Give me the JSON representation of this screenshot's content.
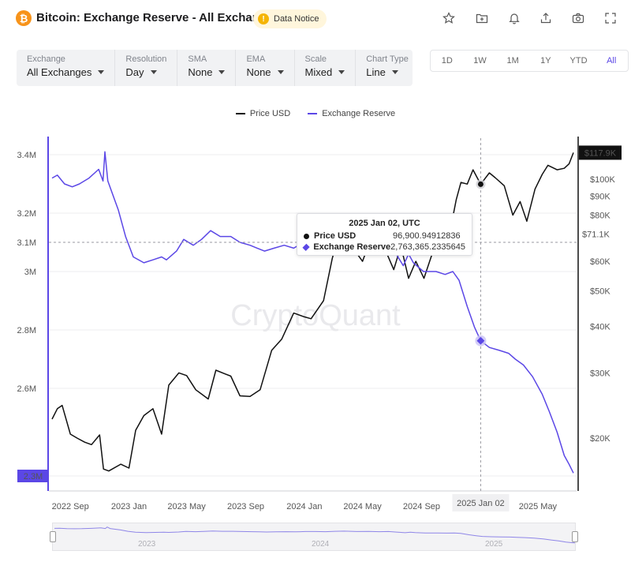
{
  "header": {
    "title": "Bitcoin: Exchange Reserve - All Exchanges",
    "logo_glyph": "₿",
    "notice_label": "Data Notice",
    "notice_glyph": "!",
    "icons": [
      "star-icon",
      "folder-add-icon",
      "bell-icon",
      "share-icon",
      "camera-icon",
      "fullscreen-icon"
    ]
  },
  "controls": [
    {
      "label": "Exchange",
      "value": "All Exchanges"
    },
    {
      "label": "Resolution",
      "value": "Day"
    },
    {
      "label": "SMA",
      "value": "None"
    },
    {
      "label": "EMA",
      "value": "None"
    },
    {
      "label": "Scale",
      "value": "Mixed"
    },
    {
      "label": "Chart Type",
      "value": "Line"
    }
  ],
  "ranges": [
    "1D",
    "1W",
    "1M",
    "1Y",
    "YTD",
    "All"
  ],
  "active_range": "All",
  "colors": {
    "price": "#111111",
    "reserve": "#5b47e6",
    "accent": "#5b47e6"
  },
  "tooltip": {
    "date": "2025 Jan 02, UTC",
    "rows": [
      {
        "name": "Price USD",
        "value": "96,900.94912836"
      },
      {
        "name": "Exchange Reserve",
        "value": "2,763,365.2335645"
      }
    ]
  },
  "navigator": {
    "years": [
      "2023",
      "2024",
      "2025"
    ]
  },
  "chart_data": {
    "type": "line",
    "watermark": "CryptoQuant",
    "grid": true,
    "legend_placement": "top-center",
    "x_ticks": [
      "2022 Sep",
      "2023 Jan",
      "2023 May",
      "2023 Sep",
      "2024 Jan",
      "2024 May",
      "2024 Sep",
      "2025 May"
    ],
    "x_range": [
      "2022-07-25",
      "2025-07-14"
    ],
    "crosshair": {
      "x": "2025-01-02",
      "x_label": "2025 Jan 02",
      "left_label": "3.1M",
      "right_label": "$71.1K"
    },
    "y_left": {
      "label_ticks": [
        "3.4M",
        "3.2M",
        "3M",
        "2.8M",
        "2.6M",
        "2.3M"
      ],
      "range": [
        2.3,
        3.45
      ],
      "unit": "M"
    },
    "y_right": {
      "scale": "log",
      "label_ticks": [
        "$117.9K",
        "$100K",
        "$90K",
        "$80K",
        "$71.1K",
        "$60K",
        "$50K",
        "$40K",
        "$30K",
        "$20K"
      ],
      "range": [
        15,
        125
      ],
      "unit": "K"
    },
    "series": [
      {
        "name": "Price USD",
        "axis": "right",
        "x": [
          "2022-07-25",
          "2022-08-05",
          "2022-08-15",
          "2022-09-01",
          "2022-09-15",
          "2022-10-01",
          "2022-10-15",
          "2022-11-01",
          "2022-11-09",
          "2022-11-20",
          "2022-12-15",
          "2023-01-01",
          "2023-01-15",
          "2023-02-01",
          "2023-02-20",
          "2023-03-10",
          "2023-03-25",
          "2023-04-15",
          "2023-05-01",
          "2023-05-20",
          "2023-06-15",
          "2023-07-01",
          "2023-07-20",
          "2023-08-01",
          "2023-08-20",
          "2023-09-10",
          "2023-10-01",
          "2023-10-25",
          "2023-11-15",
          "2023-12-10",
          "2024-01-01",
          "2024-01-15",
          "2024-02-10",
          "2024-02-28",
          "2024-03-14",
          "2024-04-01",
          "2024-05-01",
          "2024-05-20",
          "2024-06-15",
          "2024-07-05",
          "2024-07-20",
          "2024-08-05",
          "2024-08-20",
          "2024-09-06",
          "2024-09-25",
          "2024-10-15",
          "2024-10-30",
          "2024-11-12",
          "2024-11-22",
          "2024-12-05",
          "2024-12-17",
          "2025-01-02",
          "2025-01-20",
          "2025-02-01",
          "2025-02-20",
          "2025-03-10",
          "2025-03-25",
          "2025-04-08",
          "2025-04-25",
          "2025-05-10",
          "2025-05-22",
          "2025-06-10",
          "2025-06-25",
          "2025-07-05",
          "2025-07-14"
        ],
        "values": [
          22.5,
          24.0,
          24.5,
          20.5,
          20.0,
          19.5,
          19.2,
          20.4,
          16.5,
          16.3,
          17.0,
          16.6,
          21.0,
          23.0,
          24.0,
          20.5,
          27.8,
          30.0,
          29.5,
          27.0,
          25.5,
          30.5,
          29.8,
          29.4,
          26.0,
          25.9,
          27.0,
          34.5,
          37.0,
          43.5,
          42.5,
          42.0,
          47.0,
          61.0,
          72.0,
          68.0,
          60.0,
          70.0,
          65.5,
          57.0,
          66.0,
          54.0,
          60.0,
          54.0,
          64.0,
          67.5,
          72.0,
          88.0,
          98.0,
          97.0,
          106.0,
          96.9,
          104.0,
          101.0,
          96.0,
          80.0,
          87.0,
          77.0,
          94.0,
          103.0,
          109.0,
          106.0,
          107.0,
          110.0,
          117.9
        ]
      },
      {
        "name": "Exchange Reserve",
        "axis": "left",
        "x": [
          "2022-07-25",
          "2022-08-05",
          "2022-08-20",
          "2022-09-05",
          "2022-09-20",
          "2022-10-10",
          "2022-10-30",
          "2022-11-08",
          "2022-11-12",
          "2022-11-18",
          "2022-12-10",
          "2022-12-25",
          "2023-01-10",
          "2023-02-01",
          "2023-02-20",
          "2023-03-10",
          "2023-03-20",
          "2023-04-10",
          "2023-04-25",
          "2023-05-15",
          "2023-06-01",
          "2023-06-20",
          "2023-07-10",
          "2023-08-01",
          "2023-08-20",
          "2023-09-10",
          "2023-09-25",
          "2023-10-10",
          "2023-10-30",
          "2023-11-20",
          "2023-12-10",
          "2023-12-30",
          "2024-01-20",
          "2024-02-10",
          "2024-03-01",
          "2024-03-20",
          "2024-04-15",
          "2024-05-10",
          "2024-06-01",
          "2024-06-20",
          "2024-07-10",
          "2024-07-25",
          "2024-08-05",
          "2024-08-15",
          "2024-09-05",
          "2024-10-01",
          "2024-10-20",
          "2024-11-05",
          "2024-11-18",
          "2024-12-05",
          "2024-12-20",
          "2025-01-02",
          "2025-01-20",
          "2025-02-10",
          "2025-03-01",
          "2025-03-15",
          "2025-04-01",
          "2025-04-20",
          "2025-05-10",
          "2025-05-25",
          "2025-06-10",
          "2025-06-25",
          "2025-07-05",
          "2025-07-14"
        ],
        "values": [
          3.32,
          3.33,
          3.3,
          3.29,
          3.3,
          3.32,
          3.35,
          3.31,
          3.41,
          3.31,
          3.21,
          3.12,
          3.05,
          3.03,
          3.04,
          3.05,
          3.04,
          3.07,
          3.11,
          3.09,
          3.11,
          3.14,
          3.12,
          3.12,
          3.1,
          3.09,
          3.08,
          3.07,
          3.08,
          3.09,
          3.08,
          3.1,
          3.1,
          3.09,
          3.12,
          3.13,
          3.1,
          3.11,
          3.09,
          3.1,
          3.06,
          3.02,
          3.06,
          3.03,
          3.0,
          3.0,
          2.99,
          3.0,
          2.97,
          2.88,
          2.81,
          2.763,
          2.74,
          2.73,
          2.72,
          2.7,
          2.68,
          2.64,
          2.58,
          2.52,
          2.45,
          2.37,
          2.34,
          2.31
        ]
      }
    ]
  }
}
